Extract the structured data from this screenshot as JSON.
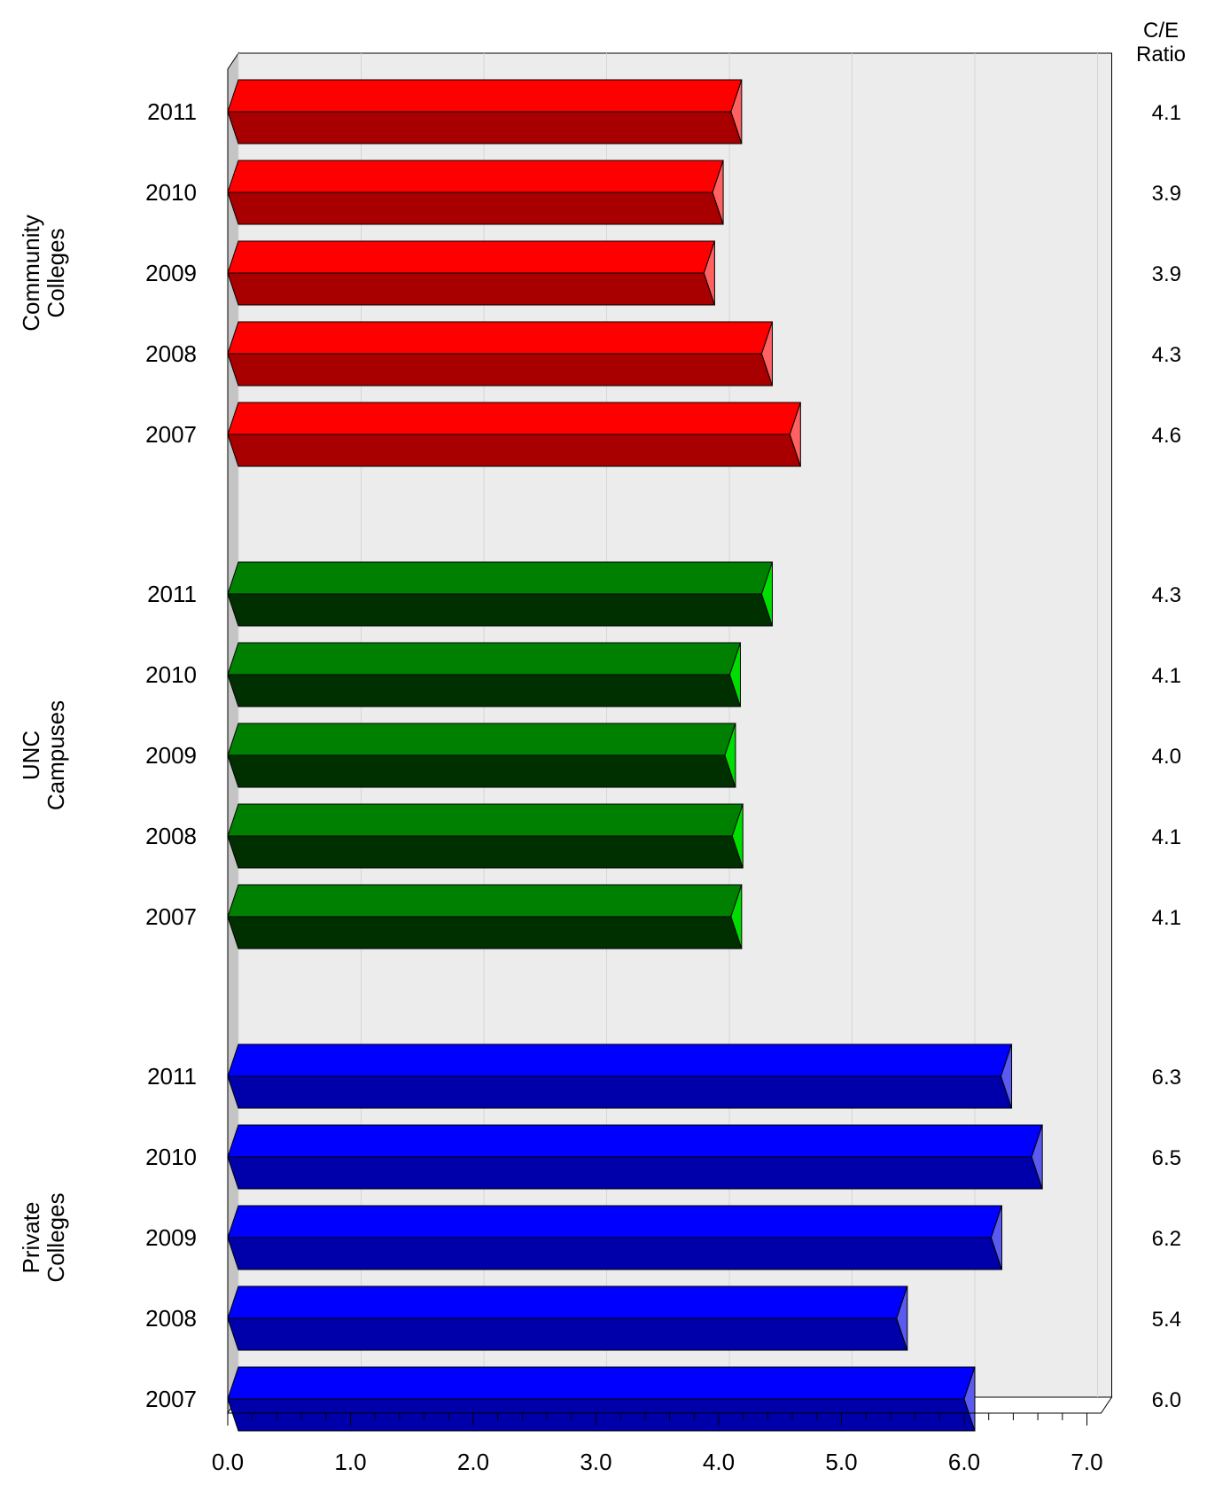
{
  "chart_data": {
    "type": "bar",
    "orientation": "horizontal",
    "style": "3d",
    "right_column_header": [
      "C/E",
      "Ratio"
    ],
    "xlim": [
      0,
      7
    ],
    "x_ticks": [
      "0.0",
      "1.0",
      "2.0",
      "3.0",
      "4.0",
      "5.0",
      "6.0",
      "7.0"
    ],
    "grid": true,
    "groups": [
      {
        "label": [
          "Community",
          "Colleges"
        ],
        "color": "#ff0000",
        "color_dark": "#a80000",
        "color_end": "#ff6060",
        "bars": [
          {
            "year": "2011",
            "value": 4.1,
            "label": "4.1"
          },
          {
            "year": "2010",
            "value": 3.95,
            "label": "3.9"
          },
          {
            "year": "2009",
            "value": 3.88,
            "label": "3.9"
          },
          {
            "year": "2008",
            "value": 4.35,
            "label": "4.3"
          },
          {
            "year": "2007",
            "value": 4.58,
            "label": "4.6"
          }
        ]
      },
      {
        "label": [
          "UNC",
          "Campuses"
        ],
        "color": "#008000",
        "color_dark": "#003000",
        "color_end": "#00dd00",
        "bars": [
          {
            "year": "2011",
            "value": 4.35,
            "label": "4.3"
          },
          {
            "year": "2010",
            "value": 4.09,
            "label": "4.1"
          },
          {
            "year": "2009",
            "value": 4.05,
            "label": "4.0"
          },
          {
            "year": "2008",
            "value": 4.11,
            "label": "4.1"
          },
          {
            "year": "2007",
            "value": 4.1,
            "label": "4.1"
          }
        ]
      },
      {
        "label": [
          "Private",
          "Colleges"
        ],
        "color": "#0000ff",
        "color_dark": "#0000aa",
        "color_end": "#5a5af0",
        "bars": [
          {
            "year": "2011",
            "value": 6.3,
            "label": "6.3"
          },
          {
            "year": "2010",
            "value": 6.55,
            "label": "6.5"
          },
          {
            "year": "2009",
            "value": 6.22,
            "label": "6.2"
          },
          {
            "year": "2008",
            "value": 5.45,
            "label": "5.4"
          },
          {
            "year": "2007",
            "value": 6.0,
            "label": "6.0"
          }
        ]
      }
    ]
  }
}
